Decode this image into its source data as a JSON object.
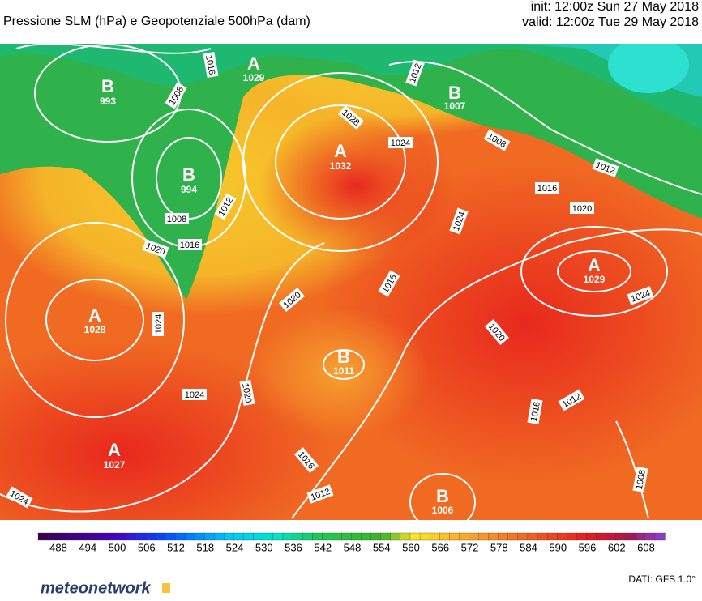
{
  "header": {
    "title": "Pressione SLM (hPa) e Geopotenziale 500hPa (dam)",
    "init": "init: 12:00z Sun 27 May 2018",
    "valid": "valid: 12:00z Tue 29 May 2018"
  },
  "map": {
    "centers": [
      {
        "label": "B",
        "value": "993"
      },
      {
        "label": "B",
        "value": "994"
      },
      {
        "label": "A",
        "value": "1029"
      },
      {
        "label": "A",
        "value": "1032"
      },
      {
        "label": "B",
        "value": "1007"
      },
      {
        "label": "A",
        "value": "1029"
      },
      {
        "label": "A",
        "value": "1028"
      },
      {
        "label": "B",
        "value": "1011"
      },
      {
        "label": "A",
        "value": "1027"
      },
      {
        "label": "B",
        "value": "1006"
      }
    ],
    "isobar_labels": [
      "1016",
      "1008",
      "1012",
      "1028",
      "1024",
      "1008",
      "1012",
      "1016",
      "1020",
      "1012",
      "1008",
      "1016",
      "1020",
      "1024",
      "1020",
      "1016",
      "1024",
      "1024",
      "1020",
      "1024",
      "1020",
      "1016",
      "1012",
      "1012",
      "1016",
      "1008",
      "1024"
    ]
  },
  "colorbar": {
    "ticks": [
      "488",
      "494",
      "500",
      "506",
      "512",
      "518",
      "524",
      "530",
      "536",
      "542",
      "548",
      "554",
      "560",
      "566",
      "572",
      "578",
      "584",
      "590",
      "596",
      "602",
      "608"
    ]
  },
  "footer": {
    "brand": "meteonetwork",
    "source": "DATI: GFS 1.0°"
  }
}
